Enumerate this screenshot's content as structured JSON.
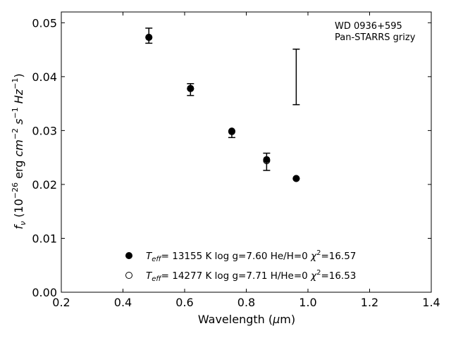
{
  "chart_data": {
    "type": "scatter",
    "title": "",
    "xlabel": "Wavelength (μm)",
    "ylabel": "fν (10⁻²⁶ erg cm⁻² s⁻¹ Hz⁻¹)",
    "xlim": [
      0.2,
      1.4
    ],
    "ylim": [
      0.0,
      0.052
    ],
    "xticks": [
      "0.2",
      "0.4",
      "0.6",
      "0.8",
      "1.0",
      "1.2",
      "1.4"
    ],
    "yticks": [
      "0.00",
      "0.01",
      "0.02",
      "0.03",
      "0.04",
      "0.05"
    ],
    "annotation": [
      "WD 0936+595",
      "Pan-STARRS grizy"
    ],
    "grid": false,
    "observed": {
      "x": [
        0.484,
        0.619,
        0.753,
        0.866,
        0.962
      ],
      "y": [
        0.0476,
        0.0376,
        0.0298,
        0.0242,
        null
      ],
      "yerr_low": [
        0.0014,
        0.0011,
        0.0011,
        0.0016,
        0.0055
      ],
      "yerr_high": [
        0.0014,
        0.0011,
        0.0001,
        0.0016,
        0.0048
      ],
      "center_for_error": [
        0.0476,
        0.0376,
        0.0298,
        0.0242,
        0.0403
      ]
    },
    "series": [
      {
        "marker": "filled-circle",
        "label_parts": {
          "teff": "13155 K",
          "logg": "log g=7.60",
          "comp": "He/H=0",
          "chi": "=16.57"
        },
        "x": [
          0.484,
          0.619,
          0.753,
          0.866,
          0.962
        ],
        "y": [
          0.0473,
          0.0378,
          0.0299,
          0.0246,
          0.0211
        ]
      },
      {
        "marker": "open-circle",
        "label_parts": {
          "teff": "14277 K",
          "logg": "log g=7.71",
          "comp": "H/He=0",
          "chi": "=16.53"
        },
        "x": [
          0.484,
          0.619,
          0.753,
          0.866,
          0.962
        ],
        "y": [
          0.0473,
          0.0378,
          0.0298,
          0.0244,
          0.0211
        ]
      }
    ],
    "legend_placement": "lower-center"
  }
}
